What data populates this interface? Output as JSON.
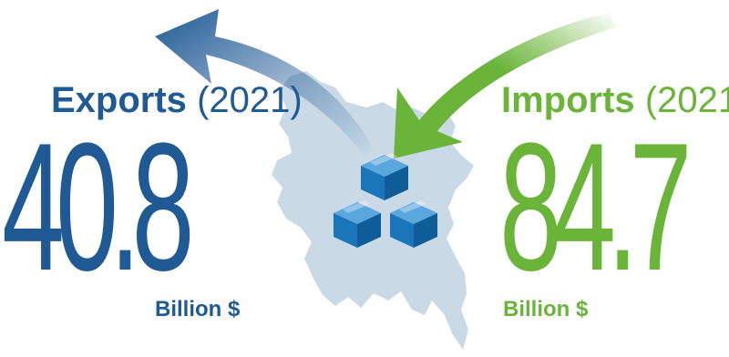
{
  "exports": {
    "label": "Exports",
    "year": "(2021)",
    "value": "40.8",
    "unit": "Billion $",
    "color": "#1f5a95"
  },
  "imports": {
    "label": "Imports",
    "year": "(2021)",
    "value": "84.7",
    "unit": "Billion $",
    "color": "#6bb43a"
  },
  "map_color": "#c9d9e6",
  "box_color": "#1a76b8"
}
